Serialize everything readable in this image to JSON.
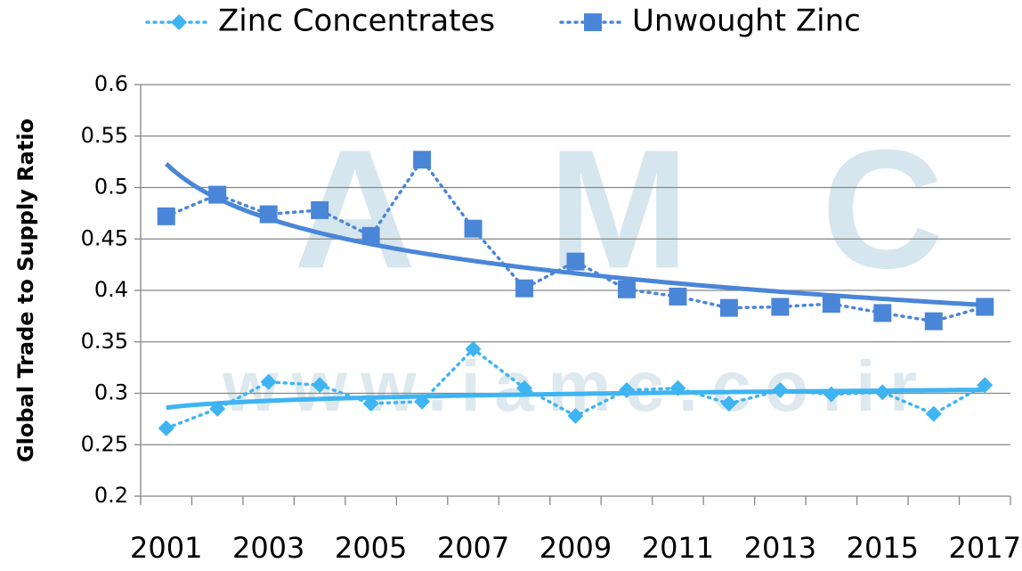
{
  "chart_data": {
    "type": "line",
    "y_label": "Global Trade to Supply Ratio",
    "watermark": [
      "AMC",
      "www.iamc.co.ir"
    ],
    "categories": [
      "2001",
      null,
      "2003",
      null,
      "2005",
      null,
      "2007",
      null,
      "2009",
      null,
      "2011",
      null,
      "2013",
      null,
      "2015",
      null,
      "2017"
    ],
    "series": [
      {
        "name": "Zinc Concentrates",
        "color": "#3fb4f2",
        "marker": "diamond",
        "values": [
          0.266,
          0.285,
          0.311,
          0.308,
          0.29,
          0.292,
          0.343,
          0.305,
          0.278,
          0.303,
          0.305,
          0.29,
          0.303,
          0.299,
          0.301,
          0.28,
          0.308
        ]
      },
      {
        "name": "Unwought Zinc",
        "color": "#4a86d8",
        "marker": "square",
        "values": [
          0.472,
          0.493,
          0.474,
          0.478,
          0.453,
          0.527,
          0.46,
          0.402,
          0.428,
          0.401,
          0.394,
          0.383,
          0.384,
          0.387,
          0.378,
          0.37,
          0.384
        ]
      }
    ],
    "trendline": "logarithmic",
    "ylim": [
      0.2,
      0.6
    ],
    "yticks": [
      0.2,
      0.25,
      0.3,
      0.35,
      0.4,
      0.45,
      0.5,
      0.55,
      0.6
    ],
    "grid": true,
    "legend": "top"
  }
}
